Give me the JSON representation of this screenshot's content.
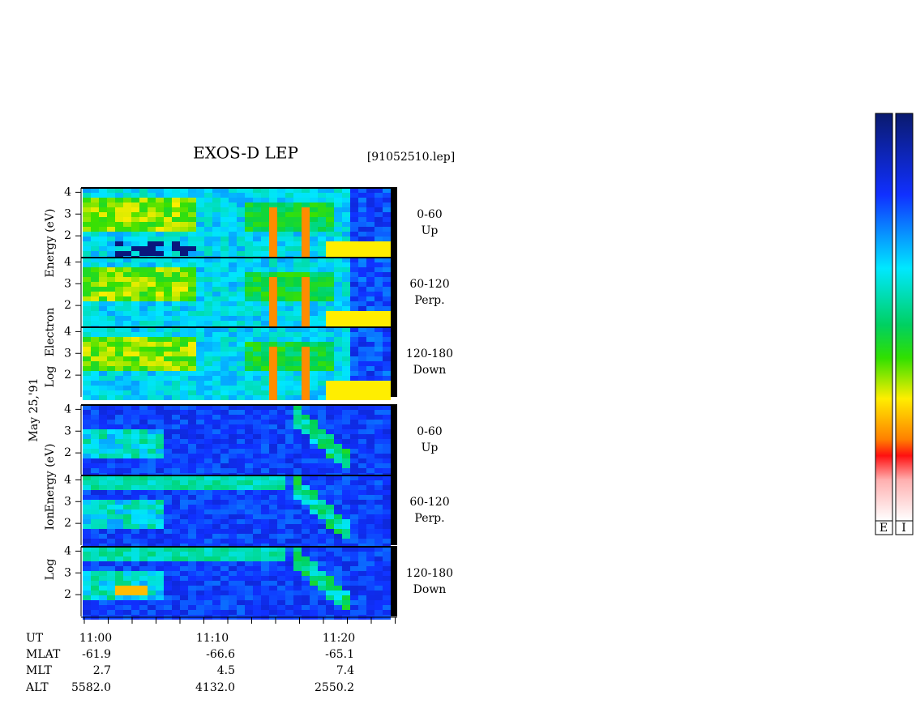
{
  "chart_data": {
    "type": "spectrogram",
    "title": "EXOS-D LEP",
    "subtitle": "[91052510.lep]",
    "date": "May 25,'91",
    "ylim": [
      1,
      4.2
    ],
    "yticks": [
      2,
      3,
      4
    ],
    "groups": [
      {
        "ylabel": [
          "Log",
          "Electron",
          "Energy (eV)"
        ],
        "panels": [
          {
            "angle": "0-60",
            "direction": "Up"
          },
          {
            "angle": "60-120",
            "direction": "Perp."
          },
          {
            "angle": "120-180",
            "direction": "Down"
          }
        ]
      },
      {
        "ylabel": [
          "Log",
          "Ion",
          "Energy (eV)"
        ],
        "panels": [
          {
            "angle": "0-60",
            "direction": "Up"
          },
          {
            "angle": "60-120",
            "direction": "Perp."
          },
          {
            "angle": "120-180",
            "direction": "Down"
          }
        ]
      }
    ],
    "orbit": {
      "labels": [
        "UT",
        "MLAT",
        "MLT",
        "ALT"
      ],
      "values": [
        [
          "11:00",
          "11:10",
          "11:20"
        ],
        [
          "-61.9",
          "-66.6",
          "-65.1"
        ],
        [
          "2.7",
          "4.5",
          "7.4"
        ],
        [
          "5582.0",
          "4132.0",
          "2550.2"
        ]
      ]
    },
    "colorbar_labels": [
      "E",
      "I"
    ]
  }
}
